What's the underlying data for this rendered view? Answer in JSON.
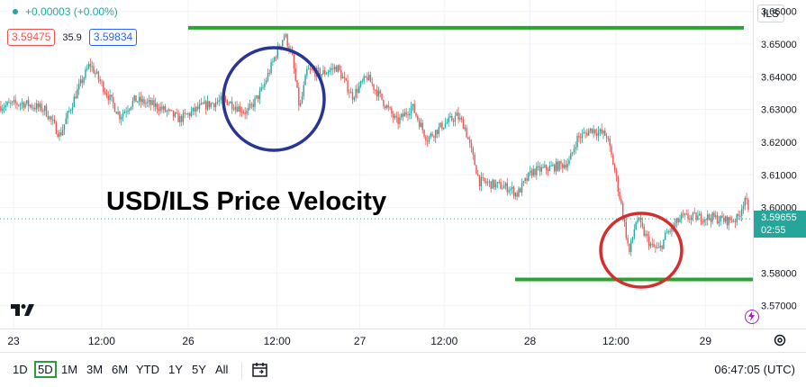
{
  "legend": {
    "change": "+0.00003 (+0.00%)",
    "bid": "3.59475",
    "spread": "35.9",
    "ask": "3.59834"
  },
  "price_scale": {
    "currency": "ILS",
    "current_price": "3.59655",
    "countdown": "02:55"
  },
  "toolbar": {
    "timeframes": [
      "1D",
      "5D",
      "1M",
      "3M",
      "6M",
      "YTD",
      "1Y",
      "5Y",
      "All"
    ],
    "active_timeframe": "5D",
    "clock": "06:47:05 (UTC)"
  },
  "colors": {
    "up": "#26a69a",
    "down": "#ef5350",
    "support_resistance": "#2aa330",
    "circle_blue": "#283593",
    "circle_red": "#d32f2f",
    "price_badge": "#26a69a",
    "active_timeframe_border": "#2a9d3c"
  },
  "icons": {
    "logo": "tradingview-logo-icon",
    "calendar": "calendar-range-icon",
    "settings": "gear-icon",
    "lightning": "lightning-icon"
  },
  "chart_data": {
    "type": "candlestick",
    "title": "USD/ILS Price Velocity",
    "symbol_currency": "ILS",
    "y_ticks": [
      3.66,
      3.65,
      3.64,
      3.63,
      3.62,
      3.61,
      3.6,
      3.58,
      3.57
    ],
    "y_tick_labels": [
      "3.66000",
      "3.65000",
      "3.64000",
      "3.63000",
      "3.62000",
      "3.61000",
      "3.60000",
      "3.58000",
      "3.57000"
    ],
    "ylim": [
      3.563,
      3.6635
    ],
    "x_ticks": [
      "23",
      "12:00",
      "26",
      "12:00",
      "27",
      "12:00",
      "28",
      "12:00",
      "29"
    ],
    "current_price": 3.59655,
    "price_path": [
      [
        0.0,
        3.631
      ],
      [
        0.03,
        3.632
      ],
      [
        0.06,
        3.63
      ],
      [
        0.08,
        3.622
      ],
      [
        0.1,
        3.634
      ],
      [
        0.12,
        3.644
      ],
      [
        0.14,
        3.636
      ],
      [
        0.16,
        3.628
      ],
      [
        0.18,
        3.633
      ],
      [
        0.21,
        3.631
      ],
      [
        0.24,
        3.627
      ],
      [
        0.27,
        3.631
      ],
      [
        0.3,
        3.633
      ],
      [
        0.33,
        3.629
      ],
      [
        0.35,
        3.636
      ],
      [
        0.37,
        3.648
      ],
      [
        0.38,
        3.653
      ],
      [
        0.39,
        3.646
      ],
      [
        0.4,
        3.63
      ],
      [
        0.41,
        3.642
      ],
      [
        0.43,
        3.641
      ],
      [
        0.45,
        3.643
      ],
      [
        0.47,
        3.634
      ],
      [
        0.49,
        3.64
      ],
      [
        0.51,
        3.633
      ],
      [
        0.53,
        3.626
      ],
      [
        0.55,
        3.631
      ],
      [
        0.57,
        3.621
      ],
      [
        0.59,
        3.625
      ],
      [
        0.61,
        3.628
      ],
      [
        0.62,
        3.625
      ],
      [
        0.64,
        3.608
      ],
      [
        0.66,
        3.607
      ],
      [
        0.68,
        3.606
      ],
      [
        0.69,
        3.604
      ],
      [
        0.71,
        3.611
      ],
      [
        0.73,
        3.612
      ],
      [
        0.75,
        3.613
      ],
      [
        0.76,
        3.614
      ],
      [
        0.77,
        3.621
      ],
      [
        0.79,
        3.624
      ],
      [
        0.81,
        3.622
      ],
      [
        0.82,
        3.612
      ],
      [
        0.83,
        3.6
      ],
      [
        0.84,
        3.586
      ],
      [
        0.85,
        3.597
      ],
      [
        0.86,
        3.592
      ],
      [
        0.87,
        3.588
      ],
      [
        0.88,
        3.587
      ],
      [
        0.89,
        3.592
      ],
      [
        0.91,
        3.597
      ],
      [
        0.93,
        3.597
      ],
      [
        0.95,
        3.597
      ],
      [
        0.97,
        3.596
      ],
      [
        0.985,
        3.5966
      ],
      [
        0.995,
        3.6035
      ],
      [
        1.0,
        3.5966
      ]
    ],
    "annotations": {
      "resistance_level": 3.655,
      "support_level": 3.578,
      "blue_circle_target": "spike near 3.653 on 26 around 12:00",
      "red_circle_target": "drop near 3.586 on 28 around 12:00"
    }
  }
}
